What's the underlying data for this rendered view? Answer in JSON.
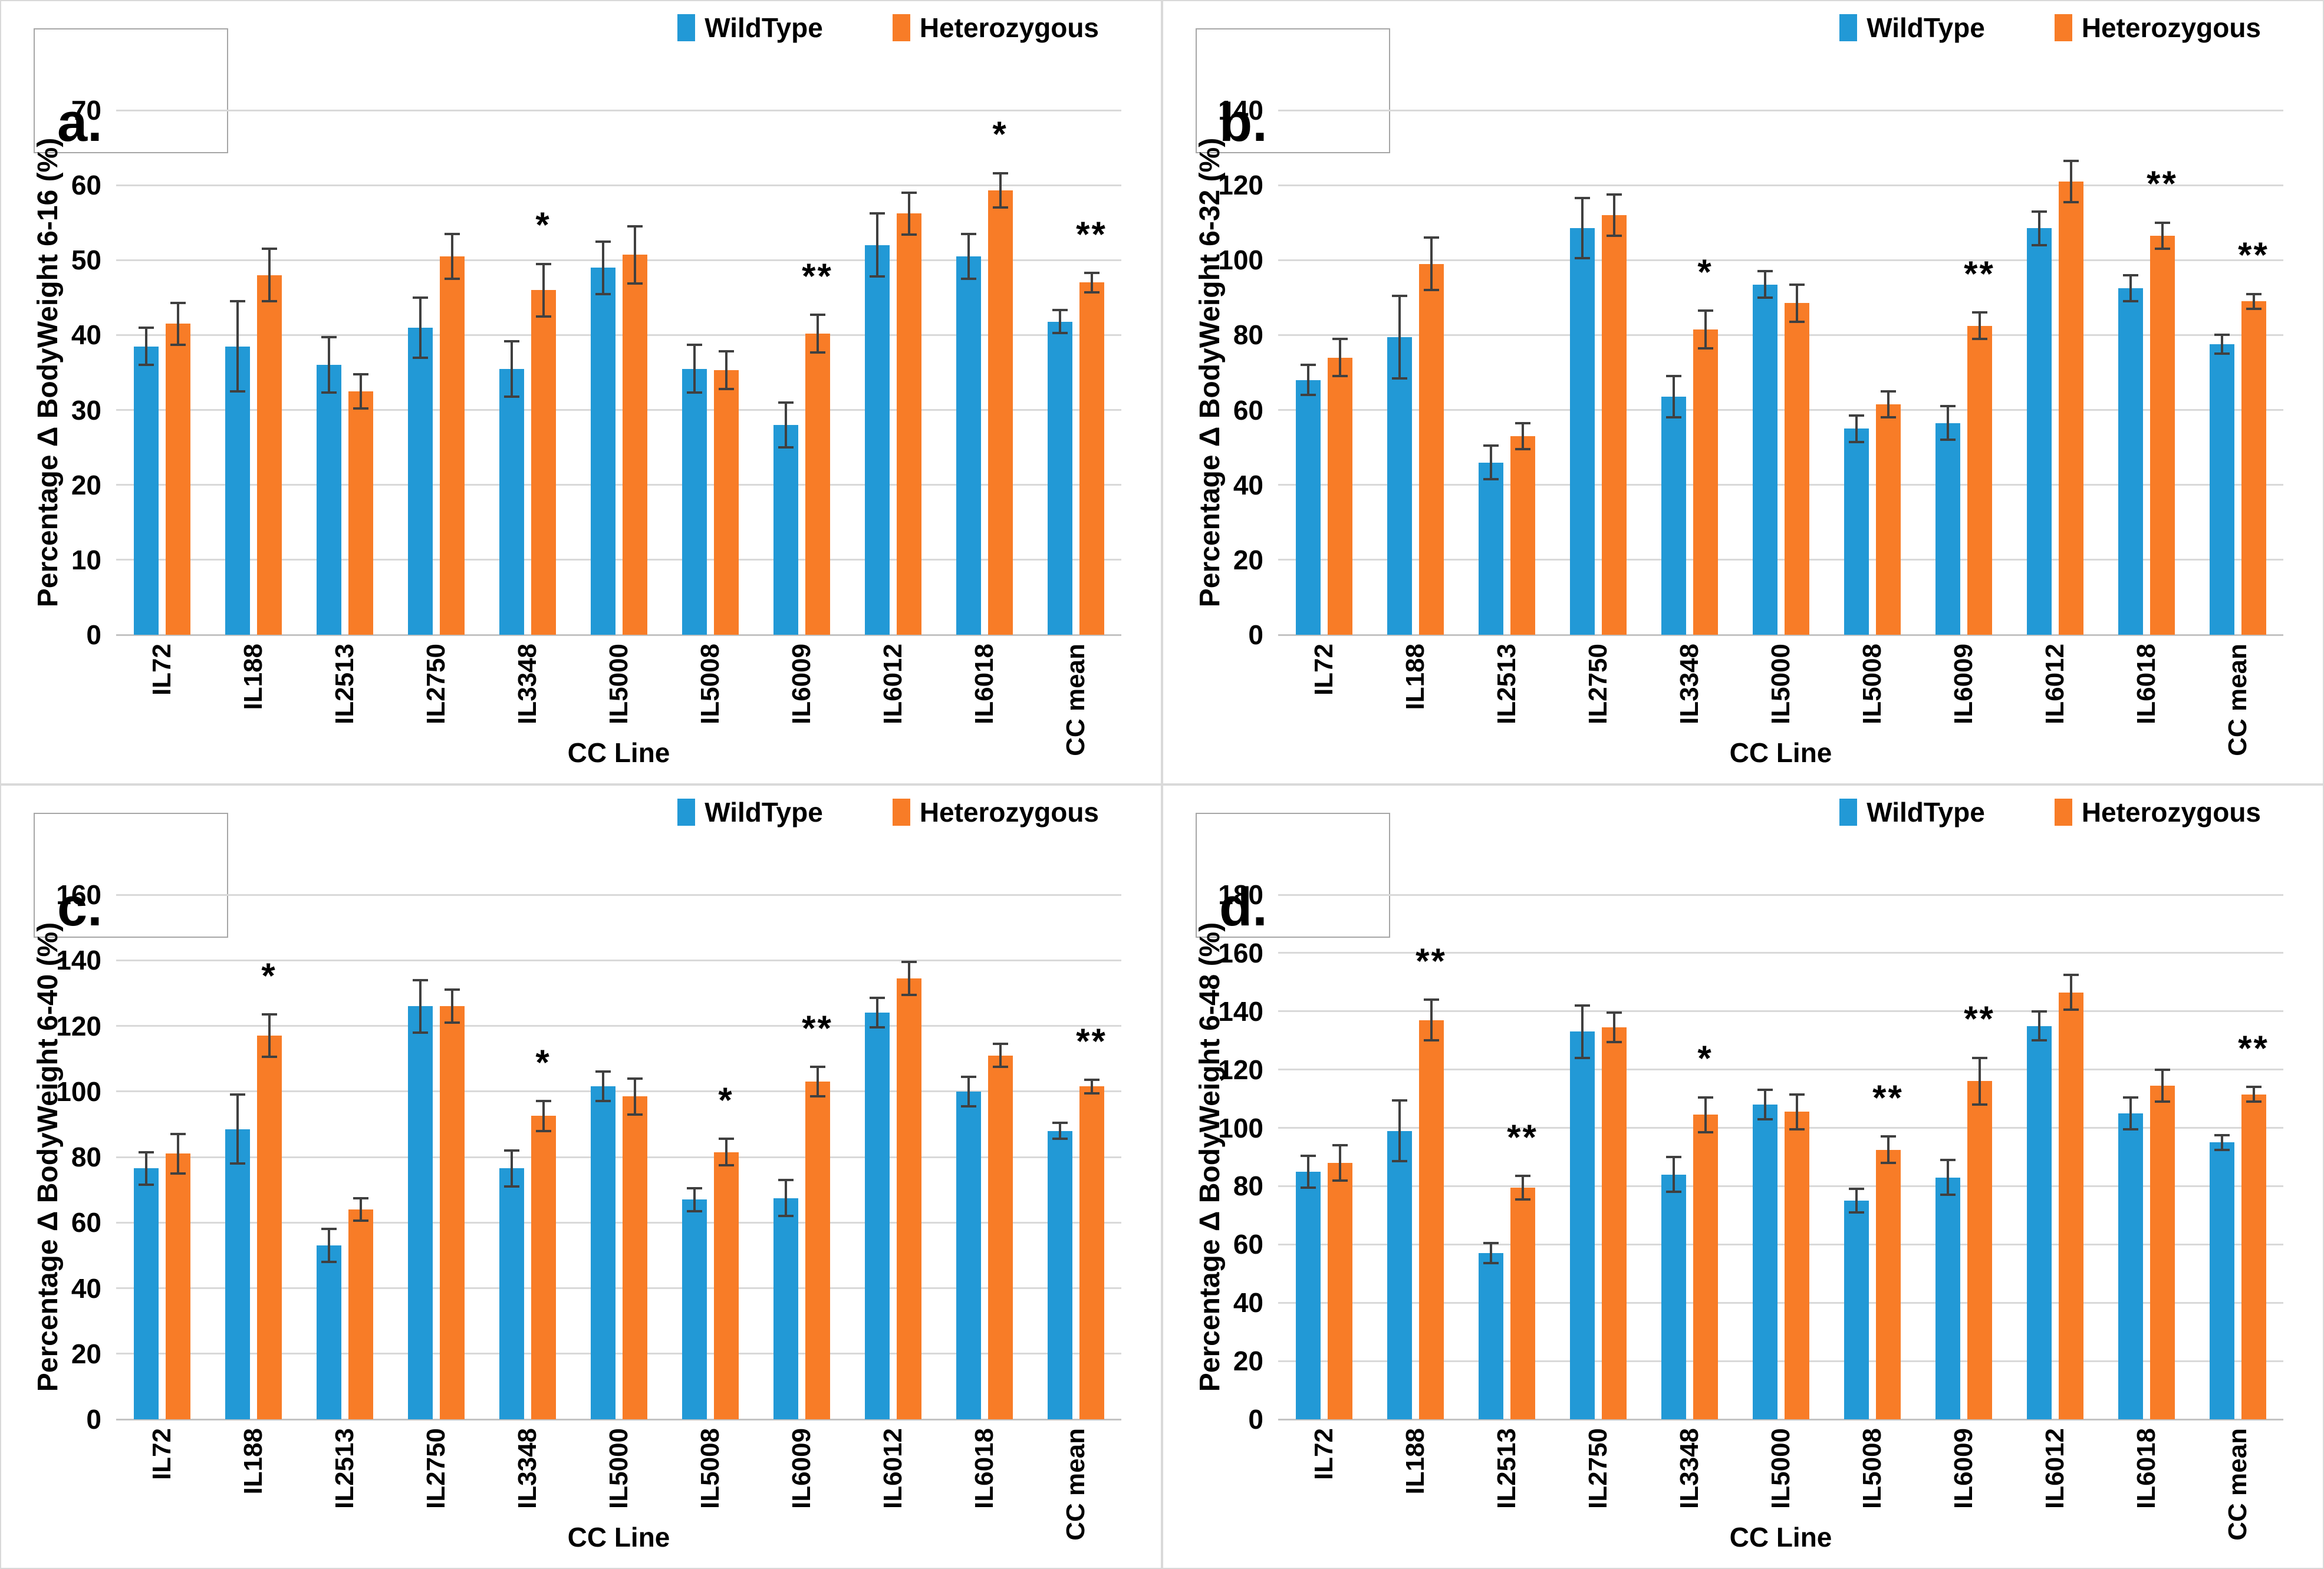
{
  "figure": {
    "x_title": "CC Line",
    "categories": [
      "IL72",
      "IL188",
      "IL2513",
      "IL2750",
      "IL3348",
      "IL5000",
      "IL5008",
      "IL6009",
      "IL6012",
      "IL6018",
      "CC mean"
    ],
    "legend": {
      "wildtype_label": "WildType",
      "heterozygous_label": "Heterozygous"
    },
    "colors": {
      "wildtype": "#2299d6",
      "heterozygous": "#f87c27",
      "gridline": "#d9d9d9",
      "axis_line": "#c3c3c3",
      "error_bar": "#404040",
      "panel_border": "#d9d9d9",
      "label_box_border": "#a6a6a6",
      "text": "#000000"
    }
  },
  "chart_data": [
    {
      "type": "bar",
      "panel_label": "a.",
      "ylabel": "Percentage Δ BodyWeight  6-16 (%)",
      "xlabel": "CC Line",
      "ylim": [
        0,
        70
      ],
      "ytick_step": 10,
      "grid": true,
      "legend_position": "top-right",
      "categories": [
        "IL72",
        "IL188",
        "IL2513",
        "IL2750",
        "IL3348",
        "IL5000",
        "IL5008",
        "IL6009",
        "IL6012",
        "IL6018",
        "CC mean"
      ],
      "series": [
        {
          "name": "WildType",
          "color": "#2299d6",
          "values": [
            38.5,
            38.5,
            36,
            41,
            35.5,
            49,
            35.5,
            28,
            52,
            50.5,
            41.8
          ],
          "errors": [
            2.5,
            6,
            3.7,
            4,
            3.7,
            3.5,
            3.2,
            3,
            4.2,
            3,
            1.5
          ]
        },
        {
          "name": "Heterozygous",
          "color": "#f87c27",
          "values": [
            41.5,
            48,
            32.5,
            50.5,
            46,
            50.7,
            35.3,
            40.2,
            56.2,
            59.3,
            47
          ],
          "errors": [
            2.8,
            3.5,
            2.3,
            3,
            3.5,
            3.8,
            2.5,
            2.5,
            2.8,
            2.3,
            1.3
          ]
        }
      ],
      "significance": [
        "",
        "",
        "",
        "",
        "*",
        "",
        "",
        "**",
        "",
        "*",
        "**"
      ]
    },
    {
      "type": "bar",
      "panel_label": "b.",
      "ylabel": "Percentage Δ BodyWeight  6-32 (%)",
      "xlabel": "CC Line",
      "ylim": [
        0,
        140
      ],
      "ytick_step": 20,
      "grid": true,
      "legend_position": "top-right",
      "categories": [
        "IL72",
        "IL188",
        "IL2513",
        "IL2750",
        "IL3348",
        "IL5000",
        "IL5008",
        "IL6009",
        "IL6012",
        "IL6018",
        "CC mean"
      ],
      "series": [
        {
          "name": "WildType",
          "color": "#2299d6",
          "values": [
            68,
            79.5,
            46,
            108.5,
            63.5,
            93.5,
            55,
            56.5,
            108.5,
            92.5,
            77.5
          ],
          "errors": [
            4,
            11,
            4.5,
            8,
            5.5,
            3.5,
            3.5,
            4.5,
            4.5,
            3.5,
            2.5
          ]
        },
        {
          "name": "Heterozygous",
          "color": "#f87c27",
          "values": [
            74,
            99,
            53,
            112,
            81.5,
            88.5,
            61.5,
            82.5,
            121,
            106.5,
            89
          ],
          "errors": [
            5,
            7,
            3.5,
            5.5,
            5,
            5,
            3.5,
            3.5,
            5.5,
            3.5,
            2
          ]
        }
      ],
      "significance": [
        "",
        "",
        "",
        "",
        "*",
        "",
        "",
        "**",
        "",
        "**",
        "**"
      ]
    },
    {
      "type": "bar",
      "panel_label": "c.",
      "ylabel": "Percentage Δ BodyWeight  6-40 (%)",
      "xlabel": "CC Line",
      "ylim": [
        0,
        160
      ],
      "ytick_step": 20,
      "grid": true,
      "legend_position": "top-right",
      "categories": [
        "IL72",
        "IL188",
        "IL2513",
        "IL2750",
        "IL3348",
        "IL5000",
        "IL5008",
        "IL6009",
        "IL6012",
        "IL6018",
        "CC mean"
      ],
      "series": [
        {
          "name": "WildType",
          "color": "#2299d6",
          "values": [
            76.5,
            88.5,
            53,
            126,
            76.5,
            101.5,
            67,
            67.5,
            124,
            100,
            88
          ],
          "errors": [
            5,
            10.5,
            5,
            8,
            5.5,
            4.5,
            3.5,
            5.5,
            4.5,
            4.5,
            2.5
          ]
        },
        {
          "name": "Heterozygous",
          "color": "#f87c27",
          "values": [
            81,
            117,
            64,
            126,
            92.5,
            98.5,
            81.5,
            103,
            134.5,
            111,
            101.5
          ],
          "errors": [
            6,
            6.5,
            3.5,
            5,
            4.5,
            5.5,
            4,
            4.5,
            5,
            3.5,
            2
          ]
        }
      ],
      "significance": [
        "",
        "*",
        "",
        "",
        "*",
        "",
        "*",
        "**",
        "",
        "",
        "**"
      ]
    },
    {
      "type": "bar",
      "panel_label": "d.",
      "ylabel": "Percentage Δ BodyWeight  6-48 (%)",
      "xlabel": "CC Line",
      "ylim": [
        0,
        180
      ],
      "ytick_step": 20,
      "grid": true,
      "legend_position": "top-right",
      "categories": [
        "IL72",
        "IL188",
        "IL2513",
        "IL2750",
        "IL3348",
        "IL5000",
        "IL5008",
        "IL6009",
        "IL6012",
        "IL6018",
        "CC mean"
      ],
      "series": [
        {
          "name": "WildType",
          "color": "#2299d6",
          "values": [
            85,
            99,
            57,
            133,
            84,
            108,
            75,
            83,
            135,
            105,
            95
          ],
          "errors": [
            5.5,
            10.5,
            3.5,
            9,
            6,
            5,
            4,
            6,
            5,
            5.5,
            2.5
          ]
        },
        {
          "name": "Heterozygous",
          "color": "#f87c27",
          "values": [
            88,
            137,
            79.5,
            134.5,
            104.5,
            105.5,
            92.5,
            116,
            146.5,
            114.5,
            111.5
          ],
          "errors": [
            6,
            7,
            4,
            5,
            6,
            6,
            4.5,
            8,
            6,
            5.5,
            2.5
          ]
        }
      ],
      "significance": [
        "",
        "**",
        "**",
        "",
        "*",
        "",
        "**",
        "**",
        "",
        "",
        "**"
      ]
    }
  ]
}
